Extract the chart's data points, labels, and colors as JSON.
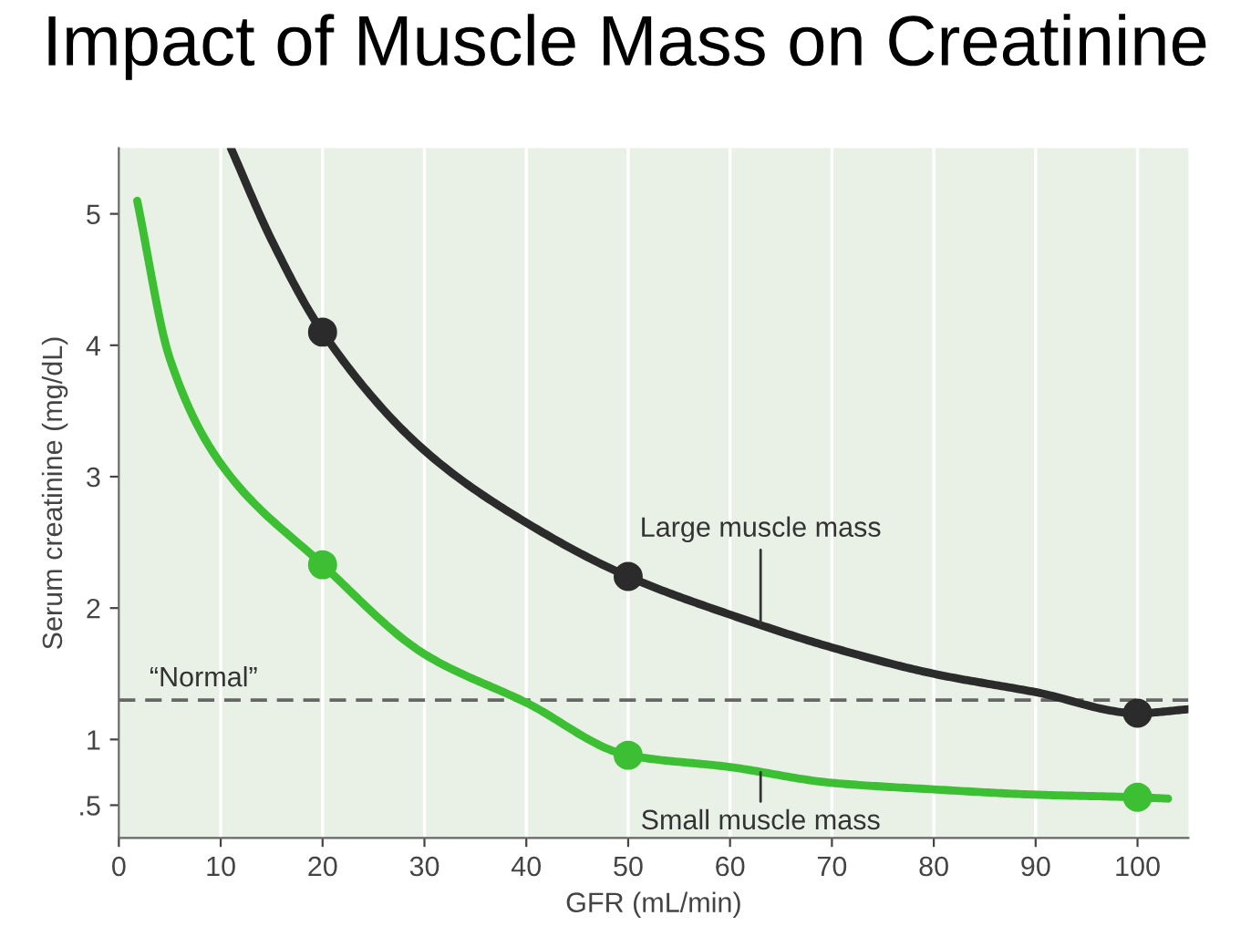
{
  "chart_data": {
    "type": "line",
    "title": "Impact of Muscle Mass on Creatinine",
    "xlabel": "GFR (mL/min)",
    "ylabel": "Serum creatinine (mg/dL)",
    "xlim": [
      0,
      105
    ],
    "xticks": [
      0,
      10,
      20,
      30,
      40,
      50,
      60,
      70,
      80,
      90,
      100
    ],
    "ylim": [
      0.25,
      5.5
    ],
    "yticks": [
      {
        "value": 0.5,
        "label": ".5"
      },
      1,
      2,
      3,
      4,
      5
    ],
    "grid": "x",
    "legend": false,
    "line_style": "solid",
    "series": [
      {
        "color": "#2b2b2b",
        "marker": "none",
        "x": [
          11,
          15,
          20,
          30,
          40,
          50,
          60,
          70,
          80,
          90,
          100,
          105
        ],
        "values": [
          5.5,
          4.8,
          4.1,
          3.2,
          2.65,
          2.24,
          1.95,
          1.7,
          1.5,
          1.36,
          1.2,
          1.23
        ]
      },
      {
        "color": "#3dbf33",
        "marker": "none",
        "x": [
          1.8,
          5,
          10,
          20,
          30,
          40,
          50,
          60,
          70,
          80,
          90,
          100,
          103
        ],
        "values": [
          5.1,
          3.9,
          3.1,
          2.33,
          1.65,
          1.28,
          0.88,
          0.79,
          0.67,
          0.62,
          0.58,
          0.56,
          0.55
        ]
      },
      {
        "type": "scatter",
        "color": "#2b2b2b",
        "marker": "circle",
        "x": [
          20,
          50,
          100
        ],
        "values": [
          4.1,
          2.24,
          1.2
        ]
      },
      {
        "type": "scatter",
        "color": "#3dbf33",
        "marker": "circle",
        "x": [
          20,
          50,
          100
        ],
        "values": [
          2.33,
          0.88,
          0.56
        ]
      }
    ],
    "ref_lines": [
      {
        "axis": "y",
        "value": 1.3,
        "label": "“Normal”",
        "color": "#666666",
        "line_style": "dashed"
      }
    ],
    "annotations": [
      {
        "text": "Large muscle mass",
        "x": 63,
        "y": 1.88
      },
      {
        "text": "Small muscle mass",
        "x": 63,
        "y": 0.75
      }
    ]
  }
}
